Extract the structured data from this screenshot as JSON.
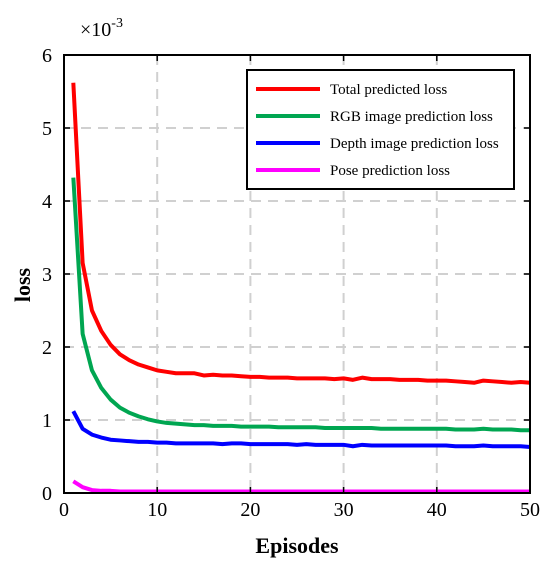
{
  "chart_data": {
    "type": "line",
    "xlabel": "Episodes",
    "ylabel": "loss",
    "exponent_label": "×10",
    "exponent_power": "-3",
    "xlim": [
      0,
      50
    ],
    "ylim": [
      0,
      6
    ],
    "xticks": [
      0,
      10,
      20,
      30,
      40,
      50
    ],
    "yticks": [
      0,
      1,
      2,
      3,
      4,
      5,
      6
    ],
    "xtick_labels": [
      "0",
      "10",
      "20",
      "30",
      "40",
      "50"
    ],
    "ytick_labels": [
      "0",
      "1",
      "2",
      "3",
      "4",
      "5",
      "6"
    ],
    "grid": true,
    "legend_position": "top-right",
    "x": [
      1,
      2,
      3,
      4,
      5,
      6,
      7,
      8,
      9,
      10,
      11,
      12,
      13,
      14,
      15,
      16,
      17,
      18,
      19,
      20,
      21,
      22,
      23,
      24,
      25,
      26,
      27,
      28,
      29,
      30,
      31,
      32,
      33,
      34,
      35,
      36,
      37,
      38,
      39,
      40,
      41,
      42,
      43,
      44,
      45,
      46,
      47,
      48,
      49,
      50
    ],
    "series": [
      {
        "name": "Total predicted loss",
        "color": "#ff0000",
        "values": [
          5.62,
          3.15,
          2.5,
          2.22,
          2.03,
          1.9,
          1.82,
          1.76,
          1.72,
          1.68,
          1.66,
          1.64,
          1.64,
          1.64,
          1.61,
          1.62,
          1.61,
          1.61,
          1.6,
          1.59,
          1.59,
          1.58,
          1.58,
          1.58,
          1.57,
          1.57,
          1.57,
          1.57,
          1.56,
          1.57,
          1.55,
          1.58,
          1.56,
          1.56,
          1.56,
          1.55,
          1.55,
          1.55,
          1.54,
          1.54,
          1.54,
          1.53,
          1.52,
          1.51,
          1.54,
          1.53,
          1.52,
          1.51,
          1.52,
          1.51
        ]
      },
      {
        "name": "RGB image prediction loss",
        "color": "#00a651",
        "values": [
          4.32,
          2.18,
          1.68,
          1.44,
          1.28,
          1.17,
          1.1,
          1.05,
          1.01,
          0.98,
          0.96,
          0.95,
          0.94,
          0.93,
          0.93,
          0.92,
          0.92,
          0.92,
          0.91,
          0.91,
          0.91,
          0.91,
          0.9,
          0.9,
          0.9,
          0.9,
          0.9,
          0.89,
          0.89,
          0.89,
          0.89,
          0.89,
          0.89,
          0.88,
          0.88,
          0.88,
          0.88,
          0.88,
          0.88,
          0.88,
          0.88,
          0.87,
          0.87,
          0.87,
          0.88,
          0.87,
          0.87,
          0.87,
          0.86,
          0.86
        ]
      },
      {
        "name": "Depth image prediction loss",
        "color": "#0000ff",
        "values": [
          1.12,
          0.88,
          0.8,
          0.76,
          0.73,
          0.72,
          0.71,
          0.7,
          0.7,
          0.69,
          0.69,
          0.68,
          0.68,
          0.68,
          0.68,
          0.68,
          0.67,
          0.68,
          0.68,
          0.67,
          0.67,
          0.67,
          0.67,
          0.67,
          0.66,
          0.67,
          0.66,
          0.66,
          0.66,
          0.66,
          0.64,
          0.66,
          0.65,
          0.65,
          0.65,
          0.65,
          0.65,
          0.65,
          0.65,
          0.65,
          0.65,
          0.64,
          0.64,
          0.64,
          0.65,
          0.64,
          0.64,
          0.64,
          0.64,
          0.63
        ]
      },
      {
        "name": "Pose prediction loss",
        "color": "#ff00ff",
        "values": [
          0.16,
          0.08,
          0.04,
          0.03,
          0.03,
          0.02,
          0.02,
          0.02,
          0.02,
          0.02,
          0.02,
          0.02,
          0.02,
          0.02,
          0.02,
          0.02,
          0.02,
          0.02,
          0.02,
          0.02,
          0.02,
          0.02,
          0.02,
          0.02,
          0.02,
          0.02,
          0.02,
          0.02,
          0.02,
          0.02,
          0.02,
          0.02,
          0.02,
          0.02,
          0.02,
          0.02,
          0.02,
          0.02,
          0.02,
          0.02,
          0.02,
          0.02,
          0.02,
          0.02,
          0.02,
          0.02,
          0.02,
          0.02,
          0.02,
          0.02
        ]
      }
    ]
  }
}
